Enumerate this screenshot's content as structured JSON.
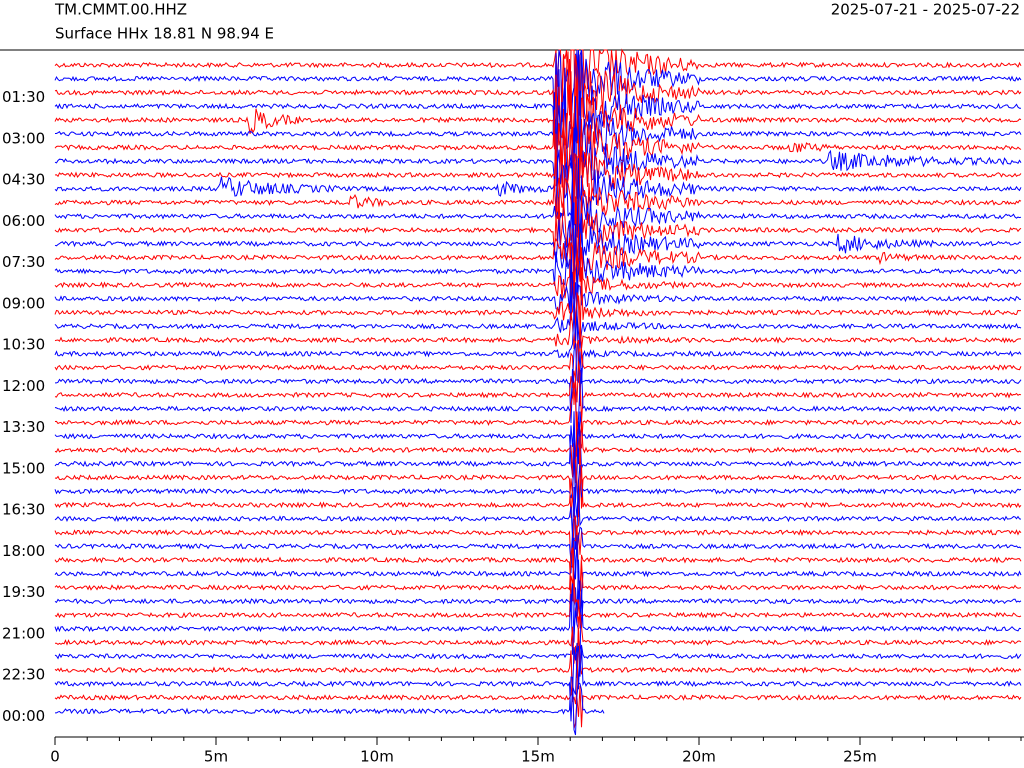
{
  "header": {
    "station": "TM.CMMT.00.HHZ",
    "location": "Surface HHx  18.81 N 98.94 E",
    "dates": "2025-07-21 - 2025-07-22"
  },
  "chart_data": {
    "type": "helicorder",
    "row_labels": [
      "01:30",
      "03:00",
      "04:30",
      "06:00",
      "07:30",
      "09:00",
      "10:30",
      "12:00",
      "13:30",
      "15:00",
      "16:30",
      "18:00",
      "19:30",
      "21:00",
      "22:30",
      "00:00"
    ],
    "colors": [
      "#ff0000",
      "#0000ff"
    ],
    "xlim": [
      0,
      30
    ],
    "xticks": [
      0,
      {
        "value": 5,
        "label": "5m"
      },
      {
        "value": 10,
        "label": "10m"
      },
      {
        "value": 15,
        "label": "15m"
      },
      {
        "value": 20,
        "label": "20m"
      },
      {
        "value": 25,
        "label": "25m"
      }
    ]
  }
}
